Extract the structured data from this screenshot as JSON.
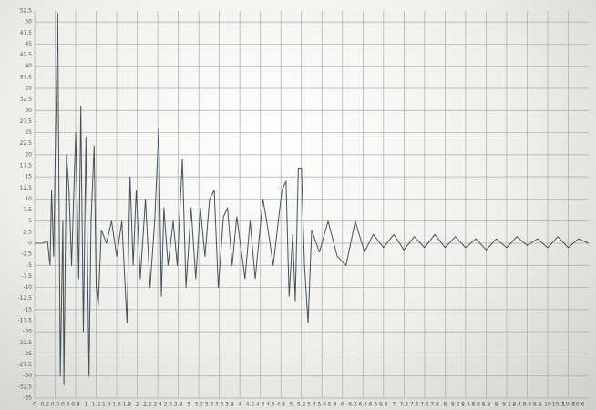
{
  "chart_data": {
    "type": "line",
    "x": [
      0,
      0.15,
      0.25,
      0.3,
      0.33,
      0.37,
      0.4,
      0.45,
      0.5,
      0.55,
      0.57,
      0.62,
      0.67,
      0.72,
      0.8,
      0.86,
      0.9,
      0.95,
      1.0,
      1.06,
      1.1,
      1.16,
      1.2,
      1.24,
      1.3,
      1.4,
      1.5,
      1.6,
      1.7,
      1.8,
      1.86,
      1.92,
      1.98,
      2.06,
      2.16,
      2.25,
      2.34,
      2.42,
      2.47,
      2.52,
      2.6,
      2.7,
      2.78,
      2.88,
      2.95,
      3.05,
      3.14,
      3.23,
      3.32,
      3.41,
      3.5,
      3.58,
      3.68,
      3.76,
      3.85,
      3.94,
      4.1,
      4.2,
      4.3,
      4.45,
      4.55,
      4.65,
      4.82,
      4.9,
      4.96,
      5.03,
      5.08,
      5.14,
      5.2,
      5.26,
      5.33,
      5.4,
      5.55,
      5.72,
      5.9,
      6.07,
      6.25,
      6.43,
      6.6,
      6.8,
      7.0,
      7.2,
      7.4,
      7.6,
      7.8,
      8.0,
      8.2,
      8.4,
      8.6,
      8.8,
      9.0,
      9.2,
      9.4,
      9.6,
      9.8,
      10.0,
      10.2,
      10.4,
      10.6,
      10.8
    ],
    "values": [
      0,
      0,
      0.5,
      -5,
      12,
      -3,
      19,
      52,
      -30,
      5,
      -32,
      20,
      12,
      -5,
      25,
      -8,
      31,
      -20,
      24,
      -30,
      5,
      22,
      -10,
      -14,
      3,
      0,
      5,
      -3,
      5,
      -18,
      15,
      -5,
      12,
      -8,
      10,
      -10,
      5,
      26,
      -12,
      8,
      -5,
      5,
      -5,
      19,
      -10,
      8,
      -8,
      8,
      -3,
      10,
      12,
      -10,
      6,
      8,
      -5,
      6,
      -8,
      5,
      -8,
      10,
      3,
      -5,
      12,
      14,
      -12,
      2,
      -13,
      17,
      17,
      -5,
      -18,
      3,
      -2,
      5,
      -3,
      -5,
      5,
      -2,
      2,
      -1,
      2,
      -1.5,
      1.5,
      -1,
      2,
      -1,
      1.5,
      -1,
      1,
      -1.5,
      1,
      -1,
      1.5,
      -0.5,
      1,
      -1,
      1.5,
      -1,
      1,
      0
    ],
    "color": "#46505c",
    "xlim": [
      0,
      10.8
    ],
    "ylim": [
      -35,
      52.5
    ],
    "xticks": [
      0,
      0.2,
      0.4,
      0.6,
      0.8,
      1,
      1.2,
      1.4,
      1.6,
      1.8,
      2,
      2.2,
      2.4,
      2.6,
      2.8,
      3,
      3.2,
      3.4,
      3.6,
      3.8,
      4,
      4.2,
      4.4,
      4.6,
      4.8,
      5,
      5.2,
      5.4,
      5.6,
      5.8,
      6,
      6.2,
      6.4,
      6.6,
      6.8,
      7,
      7.2,
      7.4,
      7.6,
      7.8,
      8,
      8.2,
      8.4,
      8.6,
      8.8,
      9,
      9.2,
      9.4,
      9.6,
      9.8,
      10,
      10.2,
      10.4,
      10.6
    ],
    "yticks": [
      52.5,
      50,
      47.5,
      45,
      42.5,
      40,
      37.5,
      35,
      32.5,
      30,
      27.5,
      25,
      22.5,
      20,
      17.5,
      15,
      12.5,
      10,
      7.5,
      5,
      2.5,
      0,
      -2.5,
      -5,
      -7.5,
      -10,
      -12.5,
      -15,
      -17.5,
      -20,
      -22.5,
      -25,
      -27.5,
      -30,
      -32.5,
      -35
    ],
    "grid": true
  }
}
